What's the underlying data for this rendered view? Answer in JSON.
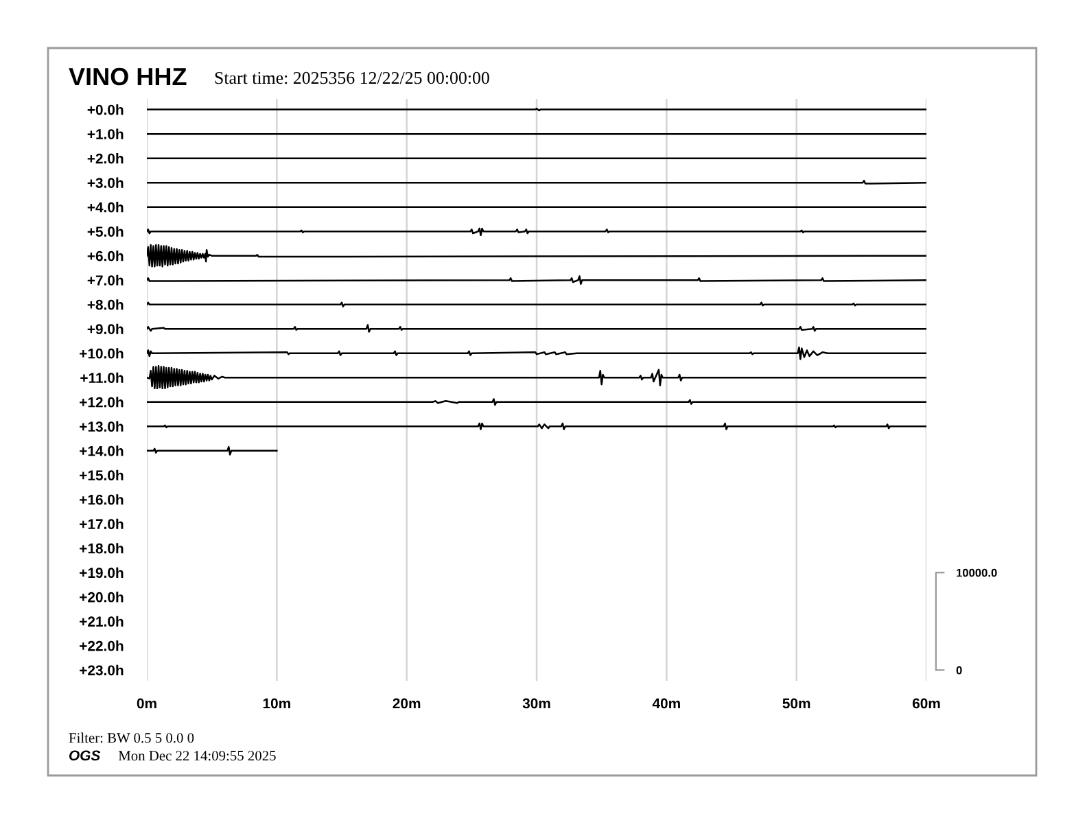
{
  "chart_data": {
    "type": "line",
    "title": "VINO HHZ",
    "subtitle": "Start time: 2025356 12/22/25 00:00:00",
    "annotations": [
      "Filter: BW 0.5 5 0.0 0",
      "OGS",
      "Mon Dec 22 14:09:55 2025"
    ],
    "xlim": [
      0,
      60
    ],
    "xticks": [
      {
        "value": 0,
        "label": "0m"
      },
      {
        "value": 10,
        "label": "10m"
      },
      {
        "value": 20,
        "label": "20m"
      },
      {
        "value": 30,
        "label": "30m"
      },
      {
        "value": 40,
        "label": "40m"
      },
      {
        "value": 50,
        "label": "50m"
      },
      {
        "value": 60,
        "label": "60m"
      }
    ],
    "ylim": [
      23.44,
      -0.44
    ],
    "yticks": [
      {
        "value": 0,
        "label": "+0.0h"
      },
      {
        "value": 1,
        "label": "+1.0h"
      },
      {
        "value": 2,
        "label": "+2.0h"
      },
      {
        "value": 3,
        "label": "+3.0h"
      },
      {
        "value": 4,
        "label": "+4.0h"
      },
      {
        "value": 5,
        "label": "+5.0h"
      },
      {
        "value": 6,
        "label": "+6.0h"
      },
      {
        "value": 7,
        "label": "+7.0h"
      },
      {
        "value": 8,
        "label": "+8.0h"
      },
      {
        "value": 9,
        "label": "+9.0h"
      },
      {
        "value": 10,
        "label": "+10.0h"
      },
      {
        "value": 11,
        "label": "+11.0h"
      },
      {
        "value": 12,
        "label": "+12.0h"
      },
      {
        "value": 13,
        "label": "+13.0h"
      },
      {
        "value": 14,
        "label": "+14.0h"
      },
      {
        "value": 15,
        "label": "+15.0h"
      },
      {
        "value": 16,
        "label": "+16.0h"
      },
      {
        "value": 17,
        "label": "+17.0h"
      },
      {
        "value": 18,
        "label": "+18.0h"
      },
      {
        "value": 19,
        "label": "+19.0h"
      },
      {
        "value": 20,
        "label": "+20.0h"
      },
      {
        "value": 21,
        "label": "+21.0h"
      },
      {
        "value": 22,
        "label": "+22.0h"
      },
      {
        "value": 23,
        "label": "+23.0h"
      }
    ],
    "y2lim": [
      -1100,
      58600
    ],
    "y2ticks": [
      0,
      {
        "value": 10000,
        "label": "10000.0"
      }
    ],
    "grid": "x",
    "series": [
      {
        "color": "#000000",
        "axis": "y2",
        "x": [
          0,
          29.9,
          30,
          30.2,
          30.3,
          60
        ],
        "values": [
          57500,
          57500,
          57600,
          57400,
          57500,
          57500
        ]
      },
      {
        "color": "#000000",
        "axis": "y2",
        "x": [
          0,
          60
        ],
        "values": [
          55000,
          55000
        ]
      },
      {
        "color": "#000000",
        "axis": "y2",
        "x": [
          0,
          60
        ],
        "values": [
          52500,
          52500
        ]
      },
      {
        "color": "#000000",
        "axis": "y2",
        "x": [
          0,
          55.1,
          55.2,
          55.3,
          60
        ],
        "values": [
          50000,
          50000,
          50200,
          49900,
          50000
        ]
      },
      {
        "color": "#000000",
        "axis": "y2",
        "x": [
          0,
          60
        ],
        "values": [
          47500,
          47500
        ]
      },
      {
        "color": "#000000",
        "axis": "y2",
        "x": [
          0,
          0.1,
          0.2,
          0.3,
          11.8,
          11.9,
          12,
          12.1,
          24.9,
          25,
          25.1,
          25.5,
          25.6,
          25.7,
          25.8,
          25.9,
          28.4,
          28.5,
          28.6,
          29.1,
          29.2,
          29.3,
          29.4,
          35.3,
          35.4,
          35.5,
          35.6,
          50.3,
          50.4,
          50.5,
          50.6,
          60
        ],
        "values": [
          45000,
          45200,
          44800,
          45000,
          45000,
          45100,
          44900,
          45000,
          45000,
          45200,
          44800,
          45000,
          45300,
          44600,
          45300,
          45000,
          45000,
          45200,
          44900,
          45000,
          45200,
          44800,
          45000,
          45000,
          45200,
          44900,
          45000,
          45000,
          45100,
          44900,
          45000,
          45000
        ]
      },
      {
        "color": "#000000",
        "axis": "y2",
        "x": [
          0,
          0.1,
          0.2,
          0.3,
          0.4,
          0.5,
          0.6,
          0.7,
          0.8,
          0.9,
          1,
          1.1,
          1.2,
          1.3,
          1.4,
          1.5,
          1.6,
          1.7,
          1.8,
          1.9,
          2,
          2.1,
          2.2,
          2.3,
          2.4,
          2.5,
          2.6,
          2.7,
          2.8,
          2.9,
          3,
          3.1,
          3.2,
          3.3,
          3.4,
          3.5,
          3.6,
          3.7,
          3.8,
          3.9,
          4,
          4.1,
          4.2,
          4.3,
          4.4,
          4.5,
          4.55,
          4.6,
          4.7,
          4.8,
          5,
          8.4,
          8.5,
          8.6,
          60
        ],
        "values": [
          42500,
          43400,
          41500,
          43600,
          41400,
          43500,
          41400,
          43600,
          41500,
          43600,
          41500,
          43500,
          41400,
          43500,
          41600,
          43500,
          41500,
          43400,
          41600,
          43300,
          41600,
          43200,
          41700,
          43200,
          41700,
          43100,
          41800,
          43100,
          41900,
          43000,
          42000,
          43000,
          42000,
          42900,
          42100,
          42900,
          42100,
          42800,
          42200,
          42800,
          42200,
          42700,
          42300,
          42700,
          42300,
          42700,
          41900,
          43100,
          42400,
          42600,
          42500,
          42500,
          42600,
          42400,
          42500
        ]
      },
      {
        "color": "#000000",
        "axis": "y2",
        "x": [
          0,
          0.1,
          0.2,
          27.9,
          28,
          28.1,
          32.6,
          32.7,
          32.8,
          33.2,
          33.3,
          33.4,
          33.5,
          42.4,
          42.5,
          42.6,
          51.9,
          52,
          52.1,
          60
        ],
        "values": [
          40000,
          40200,
          39900,
          40000,
          40200,
          39900,
          40000,
          40200,
          39800,
          40000,
          40400,
          39600,
          40000,
          40000,
          40200,
          39900,
          40000,
          40200,
          39900,
          40000
        ]
      },
      {
        "color": "#000000",
        "axis": "y2",
        "x": [
          0,
          0.1,
          0.2,
          14.9,
          15,
          15.1,
          15.2,
          47.2,
          47.3,
          47.4,
          47.5,
          54.3,
          54.4,
          54.5,
          54.6,
          60
        ],
        "values": [
          37500,
          37700,
          37500,
          37500,
          37700,
          37300,
          37500,
          37500,
          37700,
          37400,
          37500,
          37500,
          37600,
          37400,
          37500,
          37500
        ]
      },
      {
        "color": "#000000",
        "axis": "y2",
        "x": [
          0,
          0.1,
          0.3,
          0.4,
          1.3,
          1.4,
          11.3,
          11.4,
          11.5,
          11.6,
          16.9,
          17,
          17.1,
          17.2,
          19.4,
          19.5,
          19.6,
          19.7,
          50.2,
          50.3,
          50.4,
          51.2,
          51.3,
          51.4,
          51.5,
          60
        ],
        "values": [
          35000,
          35200,
          34800,
          35000,
          35100,
          35000,
          35000,
          35200,
          34900,
          35000,
          35000,
          35400,
          34700,
          35000,
          35000,
          35200,
          34900,
          35000,
          35000,
          35200,
          34900,
          35000,
          35200,
          34800,
          35000,
          35000
        ]
      },
      {
        "color": "#000000",
        "axis": "y2",
        "x": [
          0,
          0.1,
          0.2,
          0.3,
          0.4,
          10.8,
          10.9,
          11,
          14.7,
          14.8,
          14.9,
          15,
          19,
          19.1,
          19.2,
          19.3,
          24.7,
          24.8,
          24.9,
          25,
          29.9,
          30,
          30.6,
          30.7,
          31.4,
          31.5,
          32.2,
          32.3,
          33.1,
          46.4,
          46.5,
          46.6,
          46.7,
          50.1,
          50.2,
          50.3,
          50.4,
          50.6,
          50.8,
          51,
          51.3,
          51.6,
          52,
          52.4,
          60
        ],
        "values": [
          32500,
          32800,
          32200,
          32700,
          32500,
          32600,
          32400,
          32500,
          32500,
          32700,
          32300,
          32500,
          32500,
          32700,
          32300,
          32500,
          32500,
          32700,
          32300,
          32500,
          32600,
          32400,
          32600,
          32400,
          32600,
          32400,
          32600,
          32400,
          32500,
          32500,
          32600,
          32400,
          32500,
          32500,
          33100,
          31900,
          33000,
          32100,
          32800,
          32200,
          32700,
          32300,
          32600,
          32500,
          32500
        ]
      },
      {
        "color": "#000000",
        "axis": "y2",
        "x": [
          0,
          0.2,
          0.3,
          0.4,
          0.5,
          0.6,
          0.7,
          0.8,
          0.9,
          1,
          1.1,
          1.2,
          1.3,
          1.4,
          1.5,
          1.6,
          1.7,
          1.8,
          1.9,
          2,
          2.1,
          2.2,
          2.3,
          2.4,
          2.5,
          2.6,
          2.7,
          2.8,
          2.9,
          3,
          3.1,
          3.2,
          3.3,
          3.4,
          3.5,
          3.6,
          3.7,
          3.8,
          3.9,
          4,
          4.1,
          4.2,
          4.3,
          4.4,
          4.5,
          4.6,
          4.7,
          4.8,
          4.9,
          5,
          5.2,
          5.5,
          5.8,
          6,
          34.8,
          34.9,
          35,
          35.1,
          35.2,
          37.9,
          38,
          38.1,
          38.2,
          38.8,
          38.9,
          39,
          39.4,
          39.5,
          39.6,
          39.7,
          40.9,
          41,
          41.1,
          41.2,
          60
        ],
        "values": [
          30000,
          29900,
          30700,
          29100,
          31100,
          28900,
          31100,
          28900,
          31200,
          29000,
          31100,
          28900,
          31100,
          28900,
          31000,
          29000,
          31000,
          29100,
          31000,
          29100,
          30900,
          29200,
          30900,
          29200,
          30800,
          29200,
          30800,
          29300,
          30700,
          29300,
          30700,
          29400,
          30600,
          29400,
          30600,
          29500,
          30600,
          29500,
          30500,
          29500,
          30400,
          29600,
          30400,
          29600,
          30300,
          29700,
          30300,
          29700,
          30200,
          29800,
          30200,
          29900,
          30100,
          30000,
          30000,
          30700,
          29300,
          30300,
          30000,
          30000,
          30200,
          29800,
          30000,
          30000,
          30400,
          29600,
          30800,
          29200,
          30300,
          30000,
          30000,
          30300,
          29700,
          30000,
          30000
        ]
      },
      {
        "color": "#000000",
        "axis": "y2",
        "x": [
          0,
          22,
          22.2,
          22.4,
          23,
          23.9,
          24,
          26.6,
          26.7,
          26.8,
          26.9,
          41.7,
          41.8,
          41.9,
          42,
          60
        ],
        "values": [
          27500,
          27500,
          27600,
          27400,
          27600,
          27400,
          27500,
          27500,
          27800,
          27200,
          27500,
          27500,
          27700,
          27300,
          27500,
          27500
        ]
      },
      {
        "color": "#000000",
        "axis": "y2",
        "x": [
          0,
          1.3,
          1.4,
          1.5,
          1.6,
          25.5,
          25.6,
          25.7,
          25.8,
          25.9,
          30.1,
          30.2,
          30.4,
          30.6,
          30.9,
          31,
          31.9,
          32,
          32.1,
          32.2,
          44.4,
          44.5,
          44.6,
          44.7,
          52.8,
          52.9,
          53,
          53.1,
          56.9,
          57,
          57.1,
          57.2,
          60
        ],
        "values": [
          25000,
          25000,
          25100,
          24900,
          25000,
          25000,
          25300,
          24700,
          25300,
          25000,
          25000,
          25200,
          24800,
          25200,
          24800,
          25000,
          25000,
          25300,
          24700,
          25000,
          25000,
          25300,
          24700,
          25000,
          25000,
          25100,
          24900,
          25000,
          25000,
          25200,
          24800,
          25000,
          25000
        ]
      },
      {
        "color": "#000000",
        "axis": "y2",
        "x": [
          0,
          0.5,
          0.6,
          0.7,
          0.8,
          6.2,
          6.3,
          6.4,
          6.5,
          10
        ],
        "values": [
          22500,
          22500,
          22700,
          22300,
          22500,
          22500,
          22900,
          22100,
          22500,
          22500
        ]
      }
    ]
  }
}
